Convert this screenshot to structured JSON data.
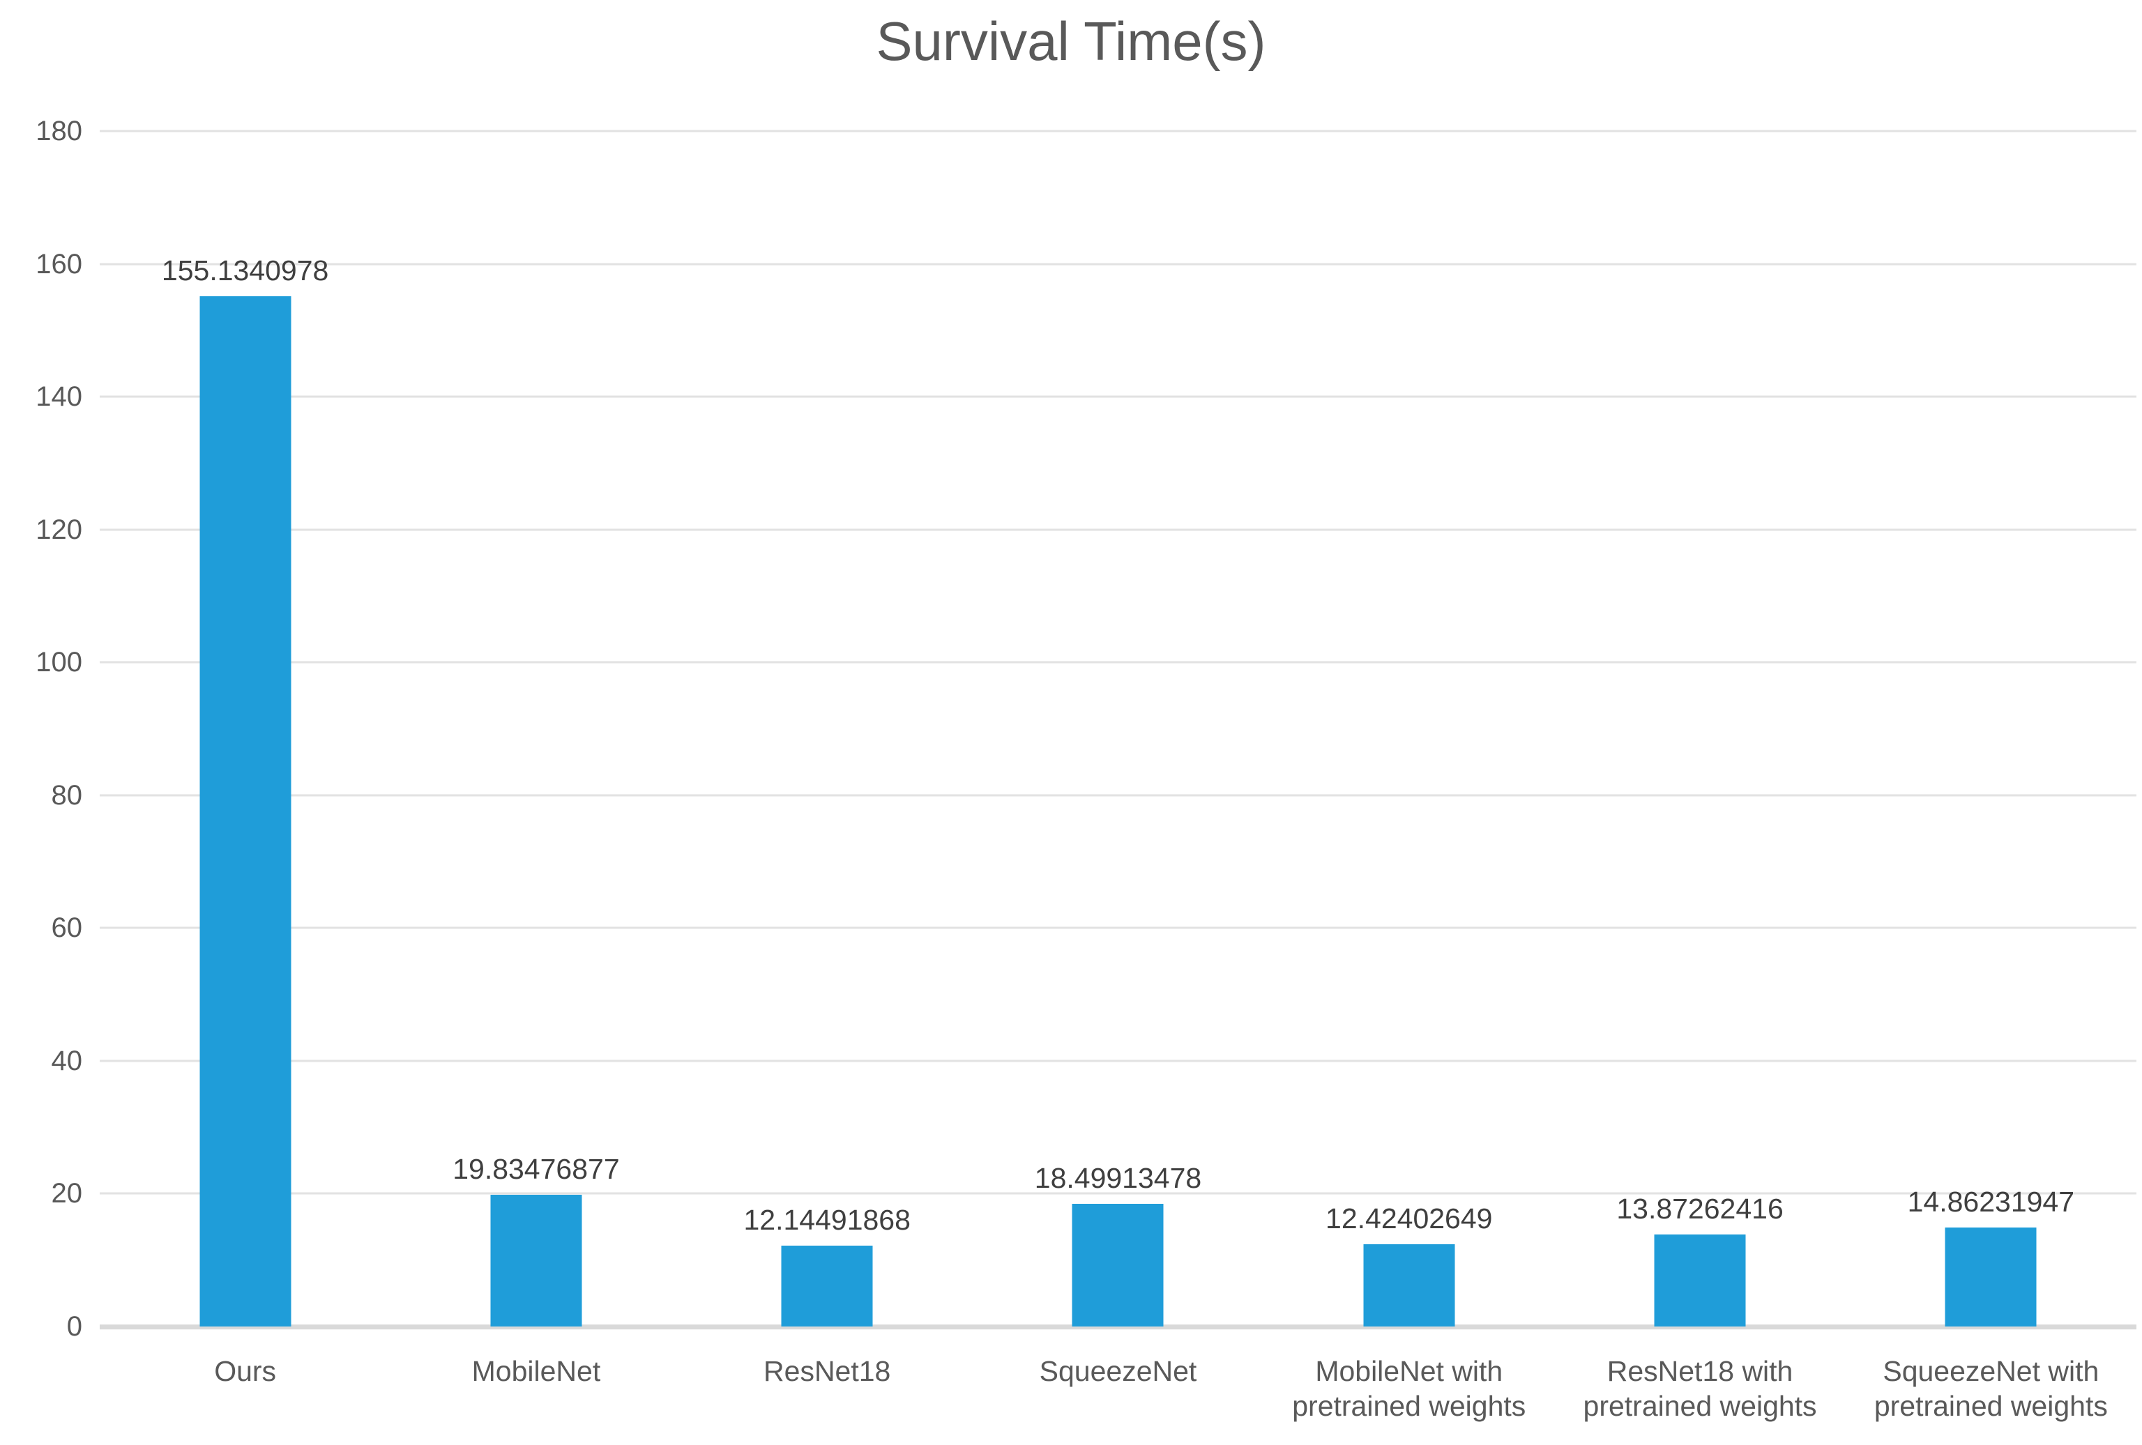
{
  "chart_data": {
    "type": "bar",
    "title": "Survival Time(s)",
    "categories": [
      "Ours",
      "MobileNet",
      "ResNet18",
      "SqueezeNet",
      "MobileNet with pretrained weights",
      "ResNet18 with pretrained weights",
      "SqueezeNet with pretrained weights"
    ],
    "values": [
      155.1340978,
      19.83476877,
      12.14491868,
      18.49913478,
      12.42402649,
      13.87262416,
      14.86231947
    ],
    "value_labels": [
      "155.1340978",
      "19.83476877",
      "12.14491868",
      "18.49913478",
      "12.42402649",
      "13.87262416",
      "14.86231947"
    ],
    "xlabel": "",
    "ylabel": "",
    "ylim": [
      0,
      180
    ],
    "yticks": [
      0,
      20,
      40,
      60,
      80,
      100,
      120,
      140,
      160,
      180
    ],
    "grid": true,
    "legend": false,
    "colors": {
      "bar": "#1F9DD9",
      "gridline": "#E2E2E2",
      "axis_line": "#D9D9D9",
      "title": "#595959",
      "tick_label": "#595959",
      "category_label": "#595959",
      "data_label": "#3F3F3F",
      "background": "#FFFFFF"
    }
  }
}
